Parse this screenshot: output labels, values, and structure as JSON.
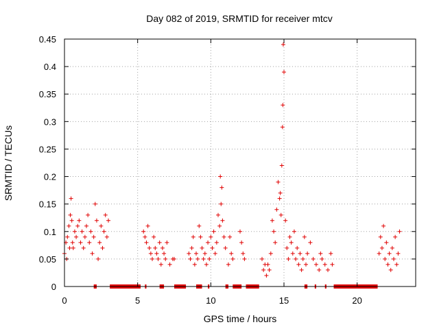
{
  "chart_data": {
    "type": "scatter",
    "title": "Day 082 of 2019, SRMTID for receiver mtcv",
    "xlabel": "GPS time / hours",
    "ylabel": "SRMTID / TECUs",
    "xlim": [
      0,
      24
    ],
    "ylim": [
      0,
      0.45
    ],
    "xticks": [
      0,
      5,
      10,
      15,
      20
    ],
    "xtick_labels": [
      "0",
      "5",
      "10",
      "15",
      "20"
    ],
    "yticks": [
      0,
      0.05,
      0.1,
      0.15,
      0.2,
      0.25,
      0.3,
      0.35,
      0.4,
      0.45
    ],
    "ytick_labels": [
      "0",
      "0.05",
      "0.1",
      "0.15",
      "0.2",
      "0.25",
      "0.3",
      "0.35",
      "0.4",
      "0.45"
    ],
    "grid": true,
    "marker": "+",
    "color": "#e00000",
    "series": [
      {
        "name": "SRMTID",
        "x": [
          0.0,
          0.1,
          0.15,
          0.2,
          0.3,
          0.35,
          0.4,
          0.45,
          0.5,
          0.55,
          0.6,
          0.7,
          0.8,
          0.9,
          1.0,
          1.1,
          1.2,
          1.3,
          1.4,
          1.5,
          1.6,
          1.7,
          1.8,
          1.9,
          2.0,
          2.1,
          2.2,
          2.3,
          2.4,
          2.5,
          2.6,
          2.7,
          2.8,
          2.9,
          3.0,
          5.4,
          5.5,
          5.6,
          5.7,
          5.8,
          5.9,
          6.0,
          6.1,
          6.2,
          6.3,
          6.4,
          6.5,
          6.6,
          6.7,
          6.8,
          6.9,
          7.0,
          7.2,
          7.4,
          7.5,
          8.5,
          8.6,
          8.7,
          8.8,
          8.9,
          9.0,
          9.1,
          9.2,
          9.3,
          9.4,
          9.5,
          9.6,
          9.7,
          9.8,
          9.9,
          10.0,
          10.1,
          10.2,
          10.3,
          10.4,
          10.5,
          10.6,
          10.65,
          10.7,
          10.75,
          10.8,
          10.9,
          11.0,
          11.2,
          11.3,
          11.4,
          11.5,
          12.0,
          12.1,
          12.2,
          12.3,
          13.5,
          13.6,
          13.7,
          13.8,
          13.9,
          14.0,
          14.1,
          14.2,
          14.3,
          14.4,
          14.5,
          14.6,
          14.7,
          14.75,
          14.8,
          14.85,
          14.9,
          14.92,
          14.95,
          15.0,
          15.1,
          15.2,
          15.3,
          15.4,
          15.5,
          15.6,
          15.7,
          15.8,
          15.9,
          16.0,
          16.1,
          16.2,
          16.3,
          16.4,
          16.5,
          16.6,
          16.8,
          17.0,
          17.2,
          17.4,
          17.5,
          17.6,
          17.8,
          18.0,
          18.2,
          18.3,
          21.5,
          21.6,
          21.7,
          21.8,
          21.9,
          22.0,
          22.1,
          22.2,
          22.3,
          22.4,
          22.5,
          22.6,
          22.7,
          22.8,
          22.9
        ],
        "y": [
          0.06,
          0.08,
          0.05,
          0.09,
          0.11,
          0.07,
          0.13,
          0.16,
          0.12,
          0.08,
          0.07,
          0.1,
          0.09,
          0.11,
          0.12,
          0.08,
          0.1,
          0.07,
          0.09,
          0.11,
          0.13,
          0.08,
          0.1,
          0.06,
          0.09,
          0.15,
          0.12,
          0.05,
          0.08,
          0.11,
          0.07,
          0.1,
          0.13,
          0.09,
          0.12,
          0.1,
          0.09,
          0.08,
          0.11,
          0.07,
          0.06,
          0.05,
          0.09,
          0.07,
          0.06,
          0.05,
          0.08,
          0.04,
          0.07,
          0.06,
          0.05,
          0.08,
          0.04,
          0.05,
          0.05,
          0.06,
          0.05,
          0.07,
          0.09,
          0.04,
          0.06,
          0.05,
          0.11,
          0.09,
          0.07,
          0.05,
          0.06,
          0.04,
          0.08,
          0.05,
          0.09,
          0.07,
          0.1,
          0.06,
          0.08,
          0.13,
          0.11,
          0.2,
          0.15,
          0.18,
          0.12,
          0.09,
          0.07,
          0.04,
          0.09,
          0.06,
          0.05,
          0.1,
          0.08,
          0.06,
          0.05,
          0.05,
          0.03,
          0.04,
          0.02,
          0.04,
          0.03,
          0.06,
          0.12,
          0.1,
          0.08,
          0.14,
          0.19,
          0.16,
          0.17,
          0.13,
          0.22,
          0.29,
          0.33,
          0.44,
          0.39,
          0.12,
          0.07,
          0.05,
          0.09,
          0.08,
          0.06,
          0.1,
          0.05,
          0.07,
          0.04,
          0.06,
          0.03,
          0.05,
          0.09,
          0.04,
          0.06,
          0.08,
          0.05,
          0.04,
          0.03,
          0.06,
          0.05,
          0.04,
          0.03,
          0.06,
          0.04,
          0.06,
          0.09,
          0.07,
          0.11,
          0.05,
          0.08,
          0.04,
          0.06,
          0.03,
          0.07,
          0.05,
          0.09,
          0.04,
          0.06,
          0.1
        ]
      }
    ],
    "gaps_x": [
      [
        2.0,
        2.2
      ],
      [
        3.1,
        5.2
      ],
      [
        5.5,
        5.6
      ],
      [
        6.5,
        6.8
      ],
      [
        7.5,
        8.3
      ],
      [
        9.0,
        9.4
      ],
      [
        9.8,
        9.9
      ],
      [
        11.0,
        11.2
      ],
      [
        11.5,
        12.1
      ],
      [
        12.4,
        13.3
      ],
      [
        16.4,
        16.6
      ],
      [
        17.1,
        17.2
      ],
      [
        17.8,
        17.9
      ],
      [
        18.4,
        21.4
      ]
    ]
  }
}
